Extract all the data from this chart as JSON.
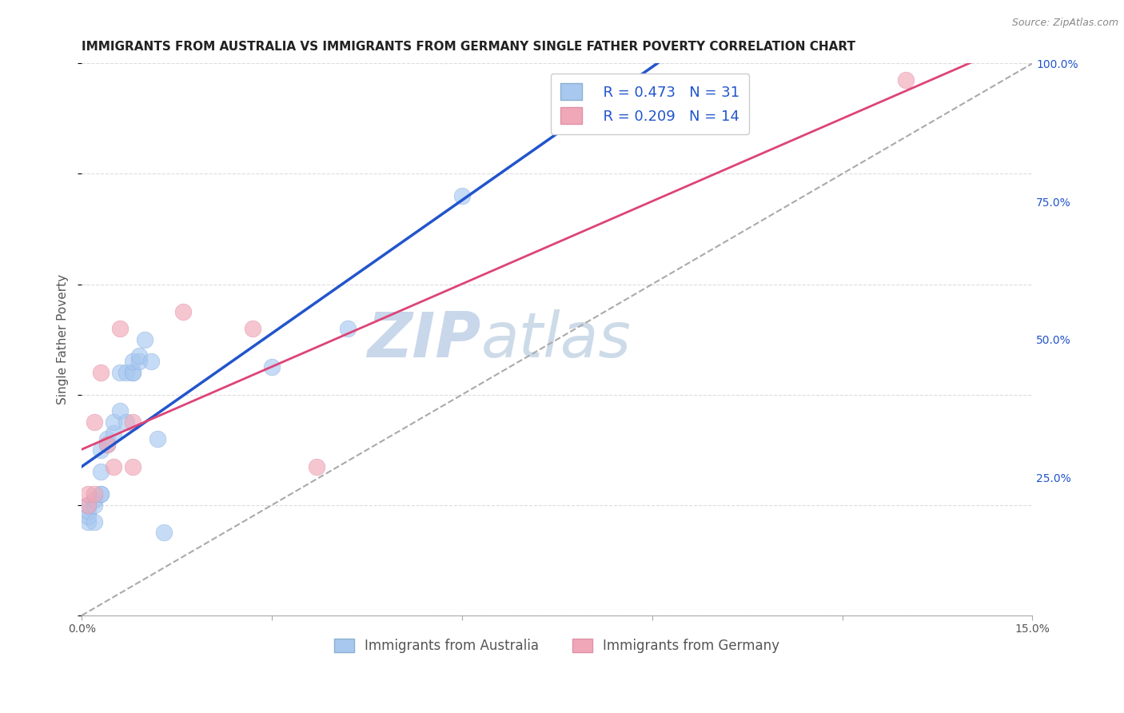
{
  "title": "IMMIGRANTS FROM AUSTRALIA VS IMMIGRANTS FROM GERMANY SINGLE FATHER POVERTY CORRELATION CHART",
  "source": "Source: ZipAtlas.com",
  "xlabel": "",
  "ylabel": "Single Father Poverty",
  "xlim": [
    0,
    0.15
  ],
  "ylim": [
    0,
    1.0
  ],
  "australia_x": [
    0.001,
    0.001,
    0.001,
    0.001,
    0.002,
    0.002,
    0.002,
    0.003,
    0.003,
    0.003,
    0.003,
    0.004,
    0.004,
    0.005,
    0.005,
    0.006,
    0.006,
    0.007,
    0.007,
    0.008,
    0.008,
    0.008,
    0.009,
    0.009,
    0.01,
    0.011,
    0.012,
    0.013,
    0.03,
    0.042,
    0.06
  ],
  "australia_y": [
    0.17,
    0.18,
    0.19,
    0.2,
    0.17,
    0.2,
    0.21,
    0.22,
    0.22,
    0.26,
    0.3,
    0.31,
    0.32,
    0.33,
    0.35,
    0.37,
    0.44,
    0.35,
    0.44,
    0.44,
    0.44,
    0.46,
    0.46,
    0.47,
    0.5,
    0.46,
    0.32,
    0.15,
    0.45,
    0.52,
    0.76
  ],
  "germany_x": [
    0.001,
    0.001,
    0.002,
    0.002,
    0.003,
    0.004,
    0.005,
    0.006,
    0.008,
    0.008,
    0.016,
    0.027,
    0.037,
    0.13
  ],
  "germany_y": [
    0.2,
    0.22,
    0.22,
    0.35,
    0.44,
    0.31,
    0.27,
    0.52,
    0.27,
    0.35,
    0.55,
    0.52,
    0.27,
    0.97
  ],
  "australia_color": "#a8c8f0",
  "germany_color": "#f0a8b8",
  "australia_trend_color": "#2255cc",
  "germany_trend_color": "#dd4477",
  "diag_line_color": "#aaaaaa",
  "watermark_zip_color": "#c0d0e8",
  "watermark_atlas_color": "#b8cce0",
  "legend_R_australia": "R = 0.473",
  "legend_N_australia": "N = 31",
  "legend_R_germany": "R = 0.209",
  "legend_N_germany": "N = 14",
  "legend_label_australia": "Immigrants from Australia",
  "legend_label_germany": "Immigrants from Germany",
  "title_fontsize": 11,
  "axis_label_fontsize": 11,
  "tick_fontsize": 10,
  "background_color": "#ffffff",
  "grid_color": "#dddddd"
}
